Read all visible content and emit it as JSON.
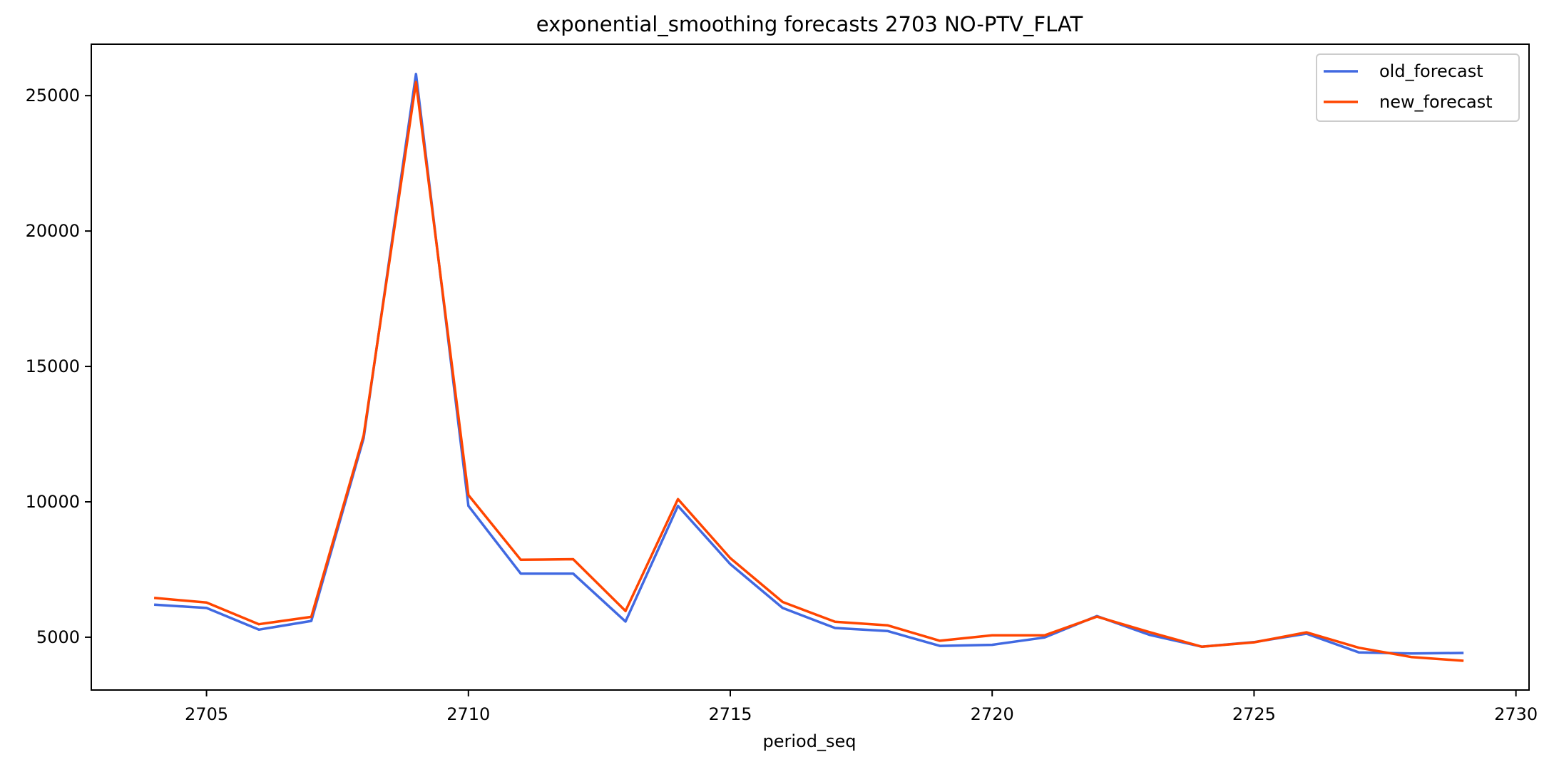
{
  "chart_data": {
    "type": "line",
    "title": "exponential_smoothing forecasts 2703 NO-PTV_FLAT",
    "xlabel": "period_seq",
    "ylabel": "",
    "xlim": [
      2702.8,
      2730.25
    ],
    "ylim": [
      3050,
      26900
    ],
    "xticks": [
      2705,
      2710,
      2715,
      2720,
      2725,
      2730
    ],
    "yticks": [
      5000,
      10000,
      15000,
      20000,
      25000
    ],
    "grid": false,
    "legend_position": "top-right",
    "x": [
      2704,
      2705,
      2706,
      2707,
      2708,
      2709,
      2710,
      2711,
      2712,
      2713,
      2714,
      2715,
      2716,
      2717,
      2718,
      2719,
      2720,
      2721,
      2722,
      2723,
      2724,
      2725,
      2726,
      2727,
      2728,
      2729
    ],
    "series": [
      {
        "name": "old_forecast",
        "color": "#4169e1",
        "values": [
          6200,
          6080,
          5280,
          5600,
          12350,
          25800,
          9850,
          7350,
          7350,
          5580,
          9850,
          7700,
          6080,
          5340,
          5230,
          4680,
          4720,
          4990,
          5780,
          5090,
          4650,
          4820,
          5130,
          4440,
          4400,
          4420
        ]
      },
      {
        "name": "new_forecast",
        "color": "#ff4500",
        "values": [
          6450,
          6280,
          5480,
          5750,
          12450,
          25500,
          10250,
          7860,
          7880,
          5970,
          10100,
          7920,
          6300,
          5570,
          5440,
          4870,
          5070,
          5070,
          5760,
          5190,
          4650,
          4810,
          5180,
          4610,
          4270,
          4130
        ]
      }
    ]
  }
}
